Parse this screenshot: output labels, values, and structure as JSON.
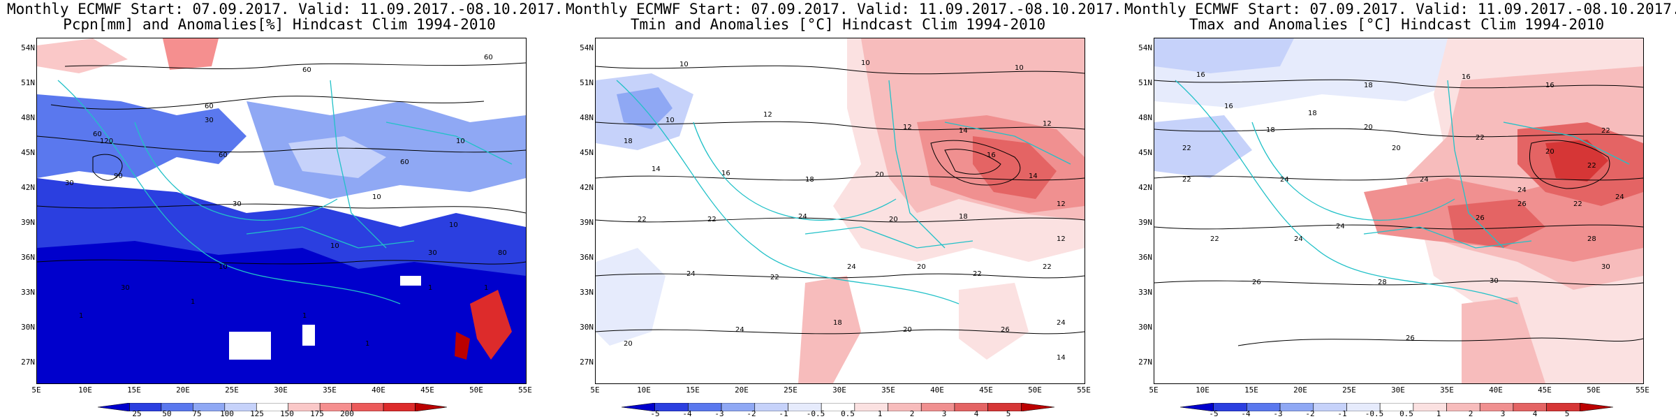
{
  "panels": [
    {
      "id": "pcpn",
      "title1": "Monthly ECMWF Start: 07.09.2017. Valid: 11.09.2017.-08.10.2017.",
      "title2": "Pcpn[mm] and Anomalies[%] Hindcast Clim 1994-2010",
      "lat_labels": [
        "54N",
        "51N",
        "48N",
        "45N",
        "42N",
        "39N",
        "36N",
        "33N",
        "30N",
        "27N"
      ],
      "lon_labels": [
        "5E",
        "10E",
        "15E",
        "20E",
        "25E",
        "30E",
        "35E",
        "40E",
        "45E",
        "50E",
        "55E"
      ],
      "colorbar": {
        "colors": [
          "#0000cc",
          "#2b3fe0",
          "#5a78ee",
          "#8fa8f4",
          "#c6d2fa",
          "#ffffff",
          "#fac8c8",
          "#f58f8f",
          "#ec5a5a",
          "#dd2b2b",
          "#bb0000"
        ],
        "labels": [
          "25",
          "50",
          "75",
          "100",
          "125",
          "150",
          "175",
          "200"
        ]
      },
      "contour_labels": [
        "60",
        "60",
        "60",
        "60",
        "60",
        "30",
        "30",
        "90",
        "120",
        "10",
        "10",
        "10",
        "10",
        "30",
        "30",
        "10",
        "1",
        "1",
        "1",
        "1",
        "1",
        "1",
        "80",
        "30",
        "60"
      ]
    },
    {
      "id": "tmin",
      "title1": "Monthly ECMWF Start: 07.09.2017. Valid: 11.09.2017.-08.10.2017.",
      "title2": "Tmin and Anomalies [°C] Hindcast Clim 1994-2010",
      "lat_labels": [
        "54N",
        "51N",
        "48N",
        "45N",
        "42N",
        "39N",
        "36N",
        "33N",
        "30N",
        "27N"
      ],
      "lon_labels": [
        "5E",
        "10E",
        "15E",
        "20E",
        "25E",
        "30E",
        "35E",
        "40E",
        "45E",
        "50E",
        "55E"
      ],
      "colorbar": {
        "colors": [
          "#0000cc",
          "#2b3fe0",
          "#5a78ee",
          "#8fa8f4",
          "#c6d2fa",
          "#e6ebfc",
          "#ffffff",
          "#fbe1e1",
          "#f7bcbc",
          "#f09090",
          "#e46464",
          "#d63636",
          "#bb0000"
        ],
        "labels": [
          "-5",
          "-4",
          "-3",
          "-2",
          "-1",
          "-0.5",
          "0.5",
          "1",
          "2",
          "3",
          "4",
          "5"
        ]
      },
      "contour_labels": [
        "10",
        "10",
        "10",
        "12",
        "12",
        "14",
        "12",
        "14",
        "16",
        "18",
        "20",
        "22",
        "22",
        "24",
        "20",
        "18",
        "16",
        "14",
        "12",
        "10",
        "18",
        "24",
        "22",
        "20",
        "24",
        "18",
        "20",
        "22",
        "26",
        "24",
        "20",
        "22",
        "24",
        "12",
        "14"
      ]
    },
    {
      "id": "tmax",
      "title1": "Monthly ECMWF Start: 07.09.2017. Valid: 11.09.2017.-08.10.2017.",
      "title2": "Tmax and Anomalies [°C] Hindcast Clim 1994-2010",
      "lat_labels": [
        "54N",
        "51N",
        "48N",
        "45N",
        "42N",
        "39N",
        "36N",
        "33N",
        "30N",
        "27N"
      ],
      "lon_labels": [
        "5E",
        "10E",
        "15E",
        "20E",
        "25E",
        "30E",
        "35E",
        "40E",
        "45E",
        "50E",
        "55E"
      ],
      "colorbar": {
        "colors": [
          "#0000cc",
          "#2b3fe0",
          "#5a78ee",
          "#8fa8f4",
          "#c6d2fa",
          "#e6ebfc",
          "#ffffff",
          "#fbe1e1",
          "#f7bcbc",
          "#f09090",
          "#e46464",
          "#d63636",
          "#bb0000"
        ],
        "labels": [
          "-5",
          "-4",
          "-3",
          "-2",
          "-1",
          "-0.5",
          "0.5",
          "1",
          "2",
          "3",
          "4",
          "5"
        ]
      },
      "contour_labels": [
        "16",
        "16",
        "18",
        "16",
        "18",
        "20",
        "22",
        "22",
        "20",
        "22",
        "24",
        "24",
        "26",
        "22",
        "24",
        "22",
        "24",
        "26",
        "28",
        "30",
        "26",
        "28",
        "30",
        "26",
        "24",
        "22",
        "20",
        "18",
        "16",
        "24",
        "22"
      ]
    }
  ]
}
